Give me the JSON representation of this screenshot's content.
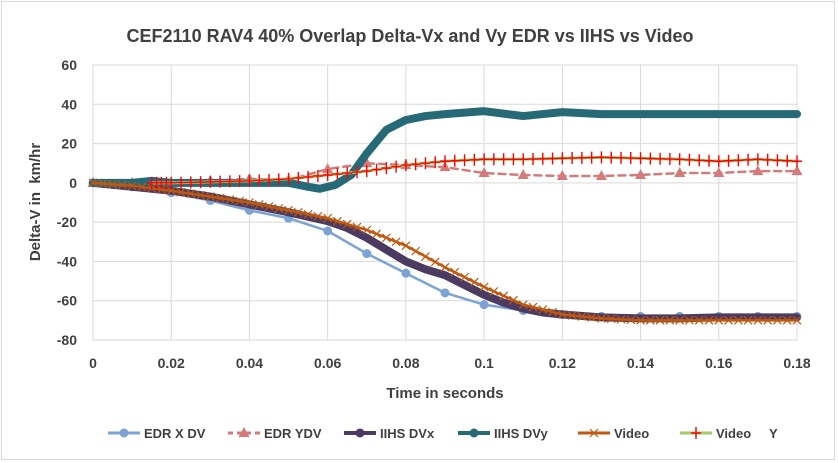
{
  "chart_data": {
    "type": "line",
    "title": "CEF2110 RAV4 40% Overlap Delta-Vx and Vy EDR vs IIHS vs Video",
    "xlabel": "Time in seconds",
    "ylabel": "Delta-V in  km/hr",
    "xlim": [
      0,
      0.18
    ],
    "ylim": [
      -80,
      60
    ],
    "xticks": [
      "0",
      "0.02",
      "0.04",
      "0.06",
      "0.08",
      "0.1",
      "0.12",
      "0.14",
      "0.16",
      "0.18"
    ],
    "yticks": [
      "60",
      "40",
      "20",
      "0",
      "-20",
      "-40",
      "-60",
      "-80"
    ],
    "grid": true,
    "legend": "bottom",
    "series": [
      {
        "name": "EDR X DV",
        "color": "#7ba3d4",
        "marker": "circle",
        "dash": false,
        "width": 2.5,
        "x": [
          0,
          0.01,
          0.02,
          0.03,
          0.04,
          0.05,
          0.06,
          0.07,
          0.08,
          0.09,
          0.1,
          0.11,
          0.12,
          0.13,
          0.14,
          0.15,
          0.16,
          0.17,
          0.18
        ],
        "y": [
          0,
          -2,
          -5,
          -9,
          -14,
          -18,
          -24.5,
          -36,
          -46,
          -56,
          -62,
          -65,
          -67,
          -68,
          -68,
          -68,
          -68,
          -68,
          -68
        ]
      },
      {
        "name": "EDR YDV",
        "color": "#d47a7a",
        "marker": "triangle",
        "dash": true,
        "width": 2.5,
        "x": [
          0,
          0.01,
          0.02,
          0.03,
          0.04,
          0.05,
          0.06,
          0.07,
          0.08,
          0.09,
          0.1,
          0.11,
          0.12,
          0.13,
          0.14,
          0.15,
          0.16,
          0.17,
          0.18
        ],
        "y": [
          0,
          0,
          0,
          1,
          2,
          1.5,
          7,
          10,
          9,
          8,
          5,
          4,
          3.5,
          3.5,
          4,
          5,
          5,
          6,
          6
        ]
      },
      {
        "name": "IIHS DVx",
        "color": "#4b3a62",
        "marker": "none",
        "dash": false,
        "width": 8,
        "x": [
          0,
          0.01,
          0.02,
          0.03,
          0.04,
          0.05,
          0.06,
          0.065,
          0.07,
          0.075,
          0.08,
          0.085,
          0.09,
          0.095,
          0.1,
          0.105,
          0.11,
          0.115,
          0.12,
          0.13,
          0.14,
          0.15,
          0.16,
          0.17,
          0.18
        ],
        "y": [
          0,
          -2,
          -4,
          -7,
          -11,
          -15,
          -19.5,
          -23,
          -28,
          -34,
          -40,
          -44,
          -47,
          -52,
          -57,
          -61,
          -64,
          -66,
          -67,
          -68.5,
          -69,
          -69,
          -68.5,
          -68.5,
          -68.5
        ]
      },
      {
        "name": "IIHS DVy",
        "color": "#266a78",
        "marker": "none",
        "dash": false,
        "width": 8,
        "x": [
          0,
          0.01,
          0.015,
          0.02,
          0.03,
          0.04,
          0.05,
          0.055,
          0.058,
          0.062,
          0.066,
          0.07,
          0.075,
          0.08,
          0.085,
          0.09,
          0.1,
          0.11,
          0.12,
          0.13,
          0.14,
          0.15,
          0.16,
          0.17,
          0.18
        ],
        "y": [
          0,
          0,
          1,
          0,
          0,
          0,
          0,
          -2,
          -3,
          -1,
          4,
          15,
          27,
          32,
          34,
          35,
          36.5,
          34,
          36,
          35,
          35,
          35,
          35,
          35,
          35
        ]
      },
      {
        "name": "Video",
        "color": "#c0580e",
        "marker": "x",
        "dash": false,
        "width": 2.5,
        "x": [
          0,
          0.01,
          0.02,
          0.03,
          0.04,
          0.05,
          0.06,
          0.07,
          0.08,
          0.09,
          0.1,
          0.11,
          0.12,
          0.13,
          0.14,
          0.15,
          0.16,
          0.17,
          0.18
        ],
        "y": [
          0,
          -1.5,
          -4,
          -7,
          -10,
          -14,
          -18,
          -24,
          -32,
          -43,
          -53,
          -62,
          -67,
          -69,
          -70,
          -70,
          -70,
          -70,
          -70
        ]
      },
      {
        "name": "Video     Y",
        "color": "#a6c96a",
        "markerColor": "#ff0000",
        "marker": "plus",
        "dash": false,
        "width": 3,
        "x": [
          0.015,
          0.02,
          0.03,
          0.04,
          0.05,
          0.06,
          0.07,
          0.08,
          0.09,
          0.1,
          0.11,
          0.12,
          0.13,
          0.14,
          0.15,
          0.16,
          0.17,
          0.18
        ],
        "y": [
          0,
          0,
          0.5,
          1,
          2,
          4,
          6,
          9,
          11,
          12,
          12,
          12.5,
          13,
          12.5,
          12,
          11,
          12,
          11
        ]
      }
    ]
  }
}
